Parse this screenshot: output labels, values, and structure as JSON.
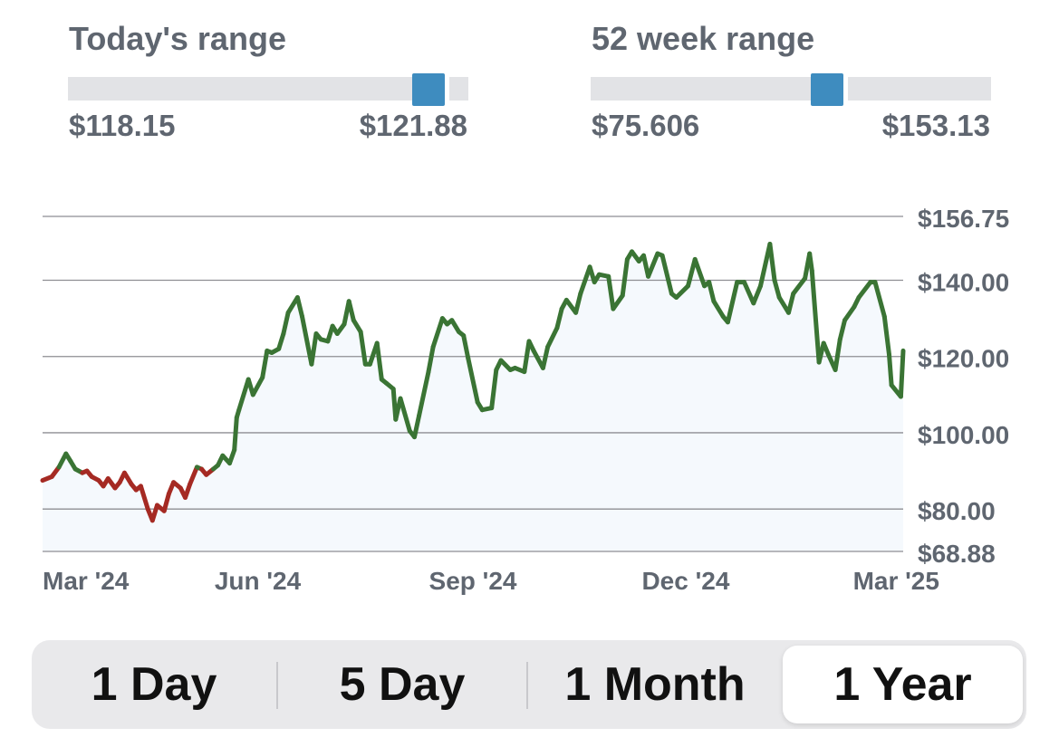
{
  "todays_range": {
    "title": "Today's range",
    "low": "$118.15",
    "high": "$121.88",
    "position": 0.9
  },
  "week52_range": {
    "title": "52 week range",
    "low": "$75.606",
    "high": "$153.13",
    "position": 0.59
  },
  "colors": {
    "up": "#3a7434",
    "down": "#a52a23",
    "marker": "#3e8cbf",
    "fill": "#f5f9fd",
    "grid": "#8e8e93",
    "label": "#5f6670"
  },
  "chart_data": {
    "type": "line",
    "ylim": [
      68.88,
      156.75
    ],
    "y_ticks": [
      "$156.75",
      "$140.00",
      "$120.00",
      "$100.00",
      "$80.00",
      "$68.88"
    ],
    "y_tick_values": [
      156.75,
      140,
      120,
      100,
      80,
      68.88
    ],
    "x_ticks": [
      "Mar '24",
      "Jun '24",
      "Sep '24",
      "Dec '24",
      "Mar '25"
    ],
    "x_tick_positions": [
      "2024-03-01",
      "2024-06-01",
      "2024-09-01",
      "2024-12-01",
      "2025-03-01"
    ],
    "x_range": [
      "2024-03-01",
      "2025-03-04"
    ],
    "baseline": 90.0,
    "series": [
      {
        "points": [
          [
            "2024-03-01",
            87.5
          ],
          [
            "2024-03-05",
            88.5
          ],
          [
            "2024-03-08",
            91.0
          ],
          [
            "2024-03-11",
            94.5
          ],
          [
            "2024-03-13",
            92.5
          ],
          [
            "2024-03-15",
            90.5
          ],
          [
            "2024-03-18",
            89.5
          ],
          [
            "2024-03-20",
            90.0
          ],
          [
            "2024-03-22",
            88.5
          ],
          [
            "2024-03-25",
            87.5
          ],
          [
            "2024-03-27",
            86.0
          ],
          [
            "2024-03-29",
            88.0
          ],
          [
            "2024-04-01",
            85.5
          ],
          [
            "2024-04-03",
            87.0
          ],
          [
            "2024-04-05",
            89.5
          ],
          [
            "2024-04-08",
            86.5
          ],
          [
            "2024-04-10",
            85.0
          ],
          [
            "2024-04-12",
            86.0
          ],
          [
            "2024-04-15",
            80.0
          ],
          [
            "2024-04-17",
            77.0
          ],
          [
            "2024-04-19",
            81.0
          ],
          [
            "2024-04-22",
            79.5
          ],
          [
            "2024-04-24",
            84.0
          ],
          [
            "2024-04-26",
            87.0
          ],
          [
            "2024-04-29",
            85.5
          ],
          [
            "2024-05-01",
            83.0
          ],
          [
            "2024-05-03",
            86.5
          ],
          [
            "2024-05-06",
            91.0
          ],
          [
            "2024-05-08",
            90.5
          ],
          [
            "2024-05-10",
            89.0
          ],
          [
            "2024-05-13",
            90.5
          ],
          [
            "2024-05-15",
            91.5
          ],
          [
            "2024-05-17",
            94.0
          ],
          [
            "2024-05-20",
            92.0
          ],
          [
            "2024-05-22",
            95.5
          ],
          [
            "2024-05-23",
            104.0
          ],
          [
            "2024-05-24",
            106.0
          ],
          [
            "2024-05-28",
            114.0
          ],
          [
            "2024-05-30",
            110.0
          ],
          [
            "2024-06-03",
            114.5
          ],
          [
            "2024-06-05",
            121.5
          ],
          [
            "2024-06-07",
            121.0
          ],
          [
            "2024-06-10",
            122.0
          ],
          [
            "2024-06-12",
            126.0
          ],
          [
            "2024-06-14",
            131.5
          ],
          [
            "2024-06-18",
            135.5
          ],
          [
            "2024-06-20",
            130.5
          ],
          [
            "2024-06-24",
            118.0
          ],
          [
            "2024-06-26",
            126.0
          ],
          [
            "2024-06-28",
            124.5
          ],
          [
            "2024-07-01",
            124.0
          ],
          [
            "2024-07-03",
            128.0
          ],
          [
            "2024-07-05",
            126.0
          ],
          [
            "2024-07-08",
            128.5
          ],
          [
            "2024-07-10",
            134.5
          ],
          [
            "2024-07-12",
            129.5
          ],
          [
            "2024-07-15",
            126.5
          ],
          [
            "2024-07-17",
            118.0
          ],
          [
            "2024-07-19",
            118.0
          ],
          [
            "2024-07-22",
            123.5
          ],
          [
            "2024-07-24",
            114.0
          ],
          [
            "2024-07-26",
            113.0
          ],
          [
            "2024-07-29",
            111.5
          ],
          [
            "2024-07-30",
            103.5
          ],
          [
            "2024-08-01",
            109.0
          ],
          [
            "2024-08-05",
            100.5
          ],
          [
            "2024-08-07",
            98.9
          ],
          [
            "2024-08-09",
            104.5
          ],
          [
            "2024-08-13",
            116.0
          ],
          [
            "2024-08-15",
            122.5
          ],
          [
            "2024-08-19",
            130.0
          ],
          [
            "2024-08-21",
            128.5
          ],
          [
            "2024-08-23",
            129.5
          ],
          [
            "2024-08-26",
            126.5
          ],
          [
            "2024-08-28",
            125.5
          ],
          [
            "2024-08-30",
            119.5
          ],
          [
            "2024-09-03",
            108.0
          ],
          [
            "2024-09-05",
            106.0
          ],
          [
            "2024-09-09",
            106.5
          ],
          [
            "2024-09-11",
            116.5
          ],
          [
            "2024-09-13",
            119.0
          ],
          [
            "2024-09-17",
            116.5
          ],
          [
            "2024-09-19",
            117.0
          ],
          [
            "2024-09-23",
            116.0
          ],
          [
            "2024-09-25",
            124.0
          ],
          [
            "2024-09-27",
            121.5
          ],
          [
            "2024-10-01",
            117.0
          ],
          [
            "2024-10-03",
            122.5
          ],
          [
            "2024-10-07",
            127.5
          ],
          [
            "2024-10-09",
            132.5
          ],
          [
            "2024-10-11",
            134.8
          ],
          [
            "2024-10-15",
            131.5
          ],
          [
            "2024-10-17",
            136.5
          ],
          [
            "2024-10-21",
            143.5
          ],
          [
            "2024-10-23",
            139.5
          ],
          [
            "2024-10-25",
            141.5
          ],
          [
            "2024-10-29",
            141.0
          ],
          [
            "2024-10-31",
            132.5
          ],
          [
            "2024-11-04",
            136.0
          ],
          [
            "2024-11-06",
            145.5
          ],
          [
            "2024-11-08",
            147.5
          ],
          [
            "2024-11-11",
            145.0
          ],
          [
            "2024-11-13",
            146.5
          ],
          [
            "2024-11-15",
            141.0
          ],
          [
            "2024-11-19",
            147.0
          ],
          [
            "2024-11-21",
            146.5
          ],
          [
            "2024-11-25",
            136.5
          ],
          [
            "2024-11-27",
            135.5
          ],
          [
            "2024-12-02",
            138.5
          ],
          [
            "2024-12-05",
            145.5
          ],
          [
            "2024-12-09",
            138.5
          ],
          [
            "2024-12-11",
            139.5
          ],
          [
            "2024-12-13",
            134.5
          ],
          [
            "2024-12-17",
            130.5
          ],
          [
            "2024-12-19",
            129.0
          ],
          [
            "2024-12-23",
            139.5
          ],
          [
            "2024-12-26",
            139.5
          ],
          [
            "2024-12-30",
            134.0
          ],
          [
            "2025-01-02",
            138.5
          ],
          [
            "2025-01-06",
            149.5
          ],
          [
            "2025-01-08",
            140.0
          ],
          [
            "2025-01-10",
            135.5
          ],
          [
            "2025-01-14",
            131.5
          ],
          [
            "2025-01-16",
            136.5
          ],
          [
            "2025-01-21",
            140.5
          ],
          [
            "2025-01-23",
            147.0
          ],
          [
            "2025-01-24",
            142.5
          ],
          [
            "2025-01-27",
            118.5
          ],
          [
            "2025-01-29",
            123.5
          ],
          [
            "2025-01-31",
            120.5
          ],
          [
            "2025-02-03",
            116.5
          ],
          [
            "2025-02-05",
            124.5
          ],
          [
            "2025-02-07",
            129.5
          ],
          [
            "2025-02-11",
            133.0
          ],
          [
            "2025-02-13",
            135.5
          ],
          [
            "2025-02-18",
            139.5
          ],
          [
            "2025-02-20",
            139.5
          ],
          [
            "2025-02-24",
            130.5
          ],
          [
            "2025-02-26",
            120.5
          ],
          [
            "2025-02-27",
            112.5
          ],
          [
            "2025-03-03",
            109.5
          ],
          [
            "2025-03-04",
            121.5
          ]
        ]
      }
    ]
  },
  "period_selector": {
    "options": [
      "1 Day",
      "5 Day",
      "1 Month",
      "1 Year"
    ],
    "selected": "1 Year"
  }
}
